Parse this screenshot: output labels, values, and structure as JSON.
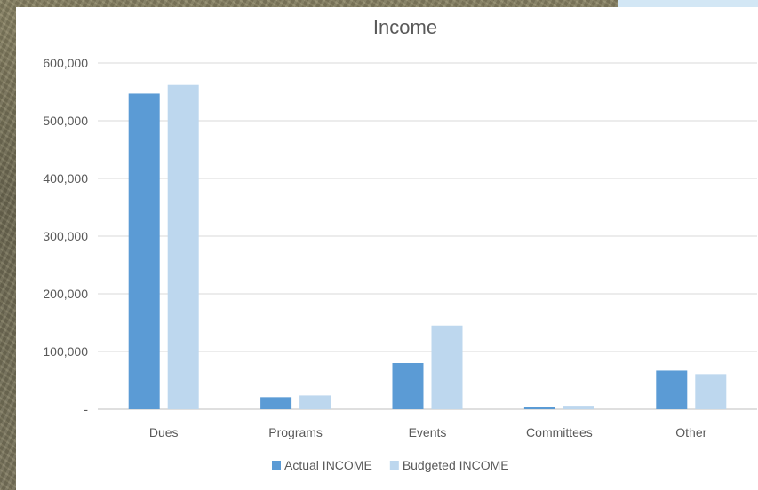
{
  "chart_data": {
    "type": "bar",
    "title": "Income",
    "categories": [
      "Dues",
      "Programs",
      "Events",
      "Committees",
      "Other"
    ],
    "series": [
      {
        "name": "Actual INCOME",
        "values": [
          547000,
          21000,
          80000,
          4000,
          67000
        ],
        "color": "#5b9bd5"
      },
      {
        "name": "Budgeted INCOME",
        "values": [
          562000,
          24000,
          145000,
          6000,
          61000
        ],
        "color": "#bdd7ee"
      }
    ],
    "yticks": [
      "-",
      "100,000",
      "200,000",
      "300,000",
      "400,000",
      "500,000",
      "600,000"
    ],
    "ylim": [
      0,
      600000
    ],
    "ystep": 100000,
    "grid": true,
    "legend_position": "bottom"
  }
}
